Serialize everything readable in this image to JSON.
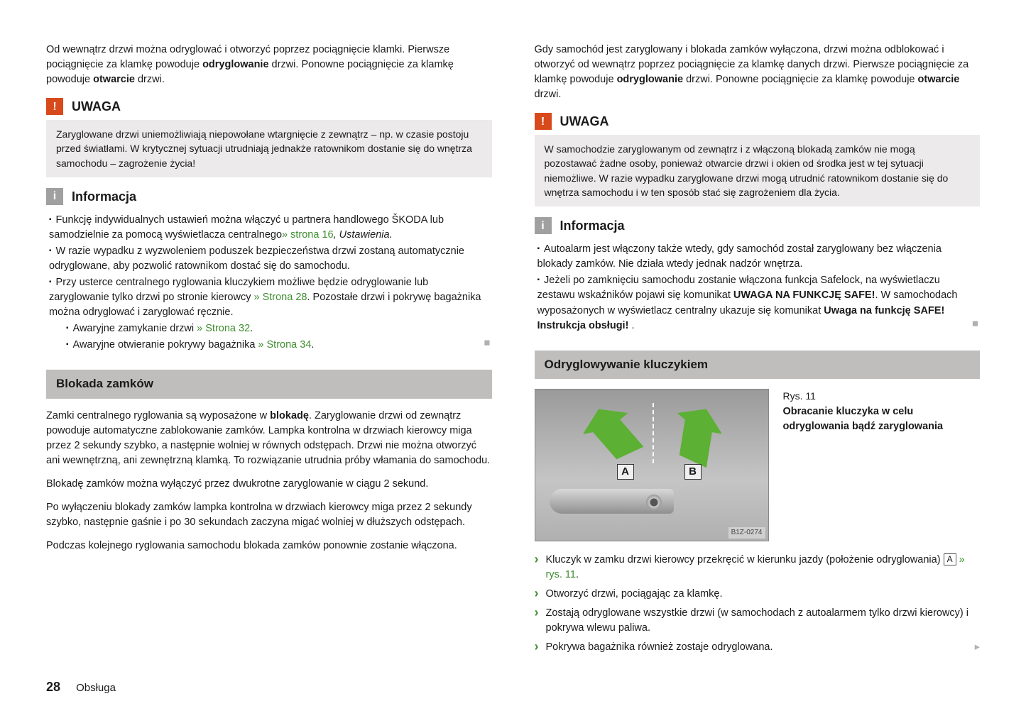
{
  "colors": {
    "link_green": "#3e8e2f",
    "warning_bg": "#d84a1c",
    "info_bg": "#a0a0a0",
    "alert_body_bg": "#eceaea",
    "section_bg": "#c0bebc",
    "arrow_green": "#5cb033"
  },
  "left": {
    "intro": "Od wewnątrz drzwi można odryglować i otworzyć poprzez pociągnięcie klamki. Pierwsze pociągnięcie za klamkę powoduje odryglowanie drzwi. Ponowne pociągnięcie za klamkę powoduje otwarcie drzwi.",
    "intro_bold_1": "odryglowanie",
    "intro_bold_2": "otwarcie",
    "warning_title": "UWAGA",
    "warning_body": "Zaryglowane drzwi uniemożliwiają niepowołane wtargnięcie z zewnątrz – np. w czasie postoju przed światłami. W krytycznej sytuacji utrudniają jednakże ratownikom dostanie się do wnętrza samochodu – zagrożenie życia!",
    "info_title": "Informacja",
    "info_items": {
      "p1_a": "Funkcję indywidualnych ustawień można włączyć u partnera handlowego ŠKODA lub samodzielnie za pomocą wyświetlacza centralnego",
      "p1_link": "» strona 16",
      "p1_b": ", Ustawienia.",
      "p2": "W razie wypadku z wyzwoleniem poduszek bezpieczeństwa drzwi zostaną automatycznie odryglowane, aby pozwolić ratownikom dostać się do samochodu.",
      "p3_a": "Przy usterce centralnego ryglowania kluczykiem możliwe będzie odryglowanie lub zaryglowanie tylko drzwi po stronie kierowcy ",
      "p3_link": "» Strona 28",
      "p3_b": ". Pozostałe drzwi i pokrywę bagażnika można odryglować i zaryglować ręcznie.",
      "sub1_a": "Awaryjne zamykanie drzwi ",
      "sub1_link": "» Strona 32",
      "sub1_b": ".",
      "sub2_a": "Awaryjne otwieranie pokrywy bagażnika ",
      "sub2_link": "» Strona 34",
      "sub2_b": "."
    },
    "section_title": "Blokada zamków",
    "sec_p1_a": "Zamki centralnego ryglowania są wyposażone w ",
    "sec_p1_bold": "blokadę",
    "sec_p1_b": ". Zaryglowanie drzwi od zewnątrz powoduje automatyczne zablokowanie zamków. Lampka kontrolna w drzwiach kierowcy miga przez 2 sekundy szybko, a następnie wolniej w równych odstępach. Drzwi nie można otworzyć ani wewnętrzną, ani zewnętrzną klamką. To rozwiązanie utrudnia próby włamania do samochodu.",
    "sec_p2": "Blokadę zamków można wyłączyć przez dwukrotne zaryglowanie w ciągu 2 sekund.",
    "sec_p3": "Po wyłączeniu blokady zamków lampka kontrolna w drzwiach kierowcy miga przez 2 sekundy szybko, następnie gaśnie i po 30 sekundach zaczyna migać wolniej w dłuższych odstępach.",
    "sec_p4": "Podczas kolejnego ryglowania samochodu blokada zamków ponownie zostanie włączona."
  },
  "right": {
    "intro": "Gdy samochód jest zaryglowany i blokada zamków wyłączona, drzwi można odblokować i otworzyć od wewnątrz poprzez pociągnięcie za klamkę danych drzwi. Pierwsze pociągnięcie za klamkę powoduje odryglowanie drzwi. Ponowne pociągnięcie za klamkę powoduje otwarcie drzwi.",
    "intro_bold_1": "odryglowanie",
    "intro_bold_2": "otwarcie",
    "warning_title": "UWAGA",
    "warning_body": "W samochodzie zaryglowanym od zewnątrz i z włączoną blokadą zamków nie mogą pozostawać żadne osoby, ponieważ otwarcie drzwi i okien od środka jest w tej sytuacji niemożliwe. W razie wypadku zaryglowane drzwi mogą utrudnić ratownikom dostanie się do wnętrza samochodu i w ten sposób stać się zagrożeniem dla życia.",
    "info_title": "Informacja",
    "info_p1": "Autoalarm jest włączony także wtedy, gdy samochód został zaryglowany bez włączenia blokady zamków. Nie działa wtedy jednak nadzór wnętrza.",
    "info_p2_a": "Jeżeli po zamknięciu samochodu zostanie włączona funkcja Safelock, na wyświetlaczu zestawu wskaźników pojawi się komunikat ",
    "info_p2_bold1": "UWAGA NA FUNKCJĘ SAFE!",
    "info_p2_b": ". W samochodach wyposażonych w wyświetlacz centralny ukazuje się komunikat ",
    "info_p2_bold2": "Uwaga na funkcję SAFE! Instrukcja obsługi!",
    "info_p2_c": " .",
    "section_title": "Odryglowywanie kluczykiem",
    "fig_num": "Rys. 11",
    "fig_title": "Obracanie kluczyka w celu odryglowania bądź zaryglowania",
    "fig_code": "B1Z-0274",
    "fig_label_a": "A",
    "fig_label_b": "B",
    "step1_a": "Kluczyk w zamku drzwi kierowcy przekręcić w kierunku jazdy (położenie odryglowania) ",
    "step1_key": "A",
    "step1_link": " » rys. 11",
    "step1_b": ".",
    "step2": "Otworzyć drzwi, pociągając za klamkę.",
    "result1": "Zostają odryglowane wszystkie drzwi (w samochodach z autoalarmem tylko drzwi kierowcy) i pokrywa wlewu paliwa.",
    "result2": "Pokrywa bagażnika również zostaje odryglowana."
  },
  "footer": {
    "page": "28",
    "section": "Obsługa"
  }
}
